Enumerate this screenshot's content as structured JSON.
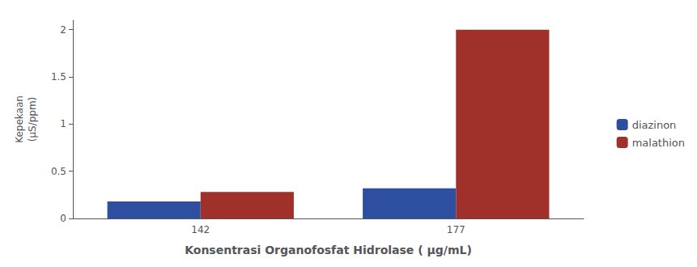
{
  "chart_data": {
    "type": "bar",
    "xlabel": "Konsentrasi Organofosfat Hidrolase ( μg/mL)",
    "ylabel": "Kepekaan\n(μS/ppm)",
    "categories": [
      "142",
      "177"
    ],
    "series": [
      {
        "name": "diazinon",
        "color": "#2E4FA0",
        "values": [
          0.18,
          0.32
        ]
      },
      {
        "name": "malathion",
        "color": "#A0302A",
        "values": [
          0.28,
          2.0
        ]
      }
    ],
    "ylim": [
      0,
      2.1
    ],
    "yticks": [
      0,
      0.5,
      1,
      1.5,
      2
    ],
    "grid": false,
    "legend": "right"
  }
}
